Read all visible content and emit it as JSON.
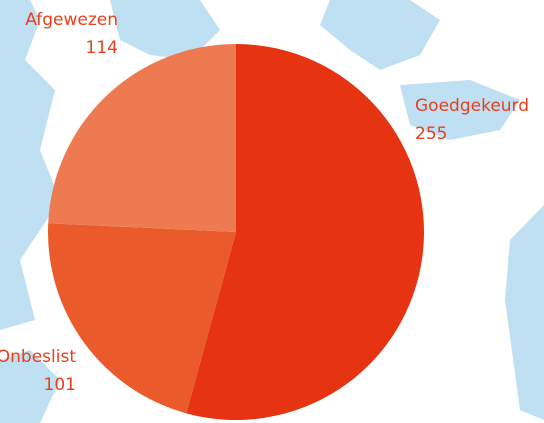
{
  "chart_data": {
    "type": "pie",
    "categories": [
      "Goedgekeurd",
      "Onbeslist",
      "Afgewezen"
    ],
    "values": [
      255,
      101,
      114
    ],
    "colors": [
      "#e63312",
      "#eb5a2a",
      "#ee7a52"
    ],
    "label_color": "#e8401c"
  }
}
